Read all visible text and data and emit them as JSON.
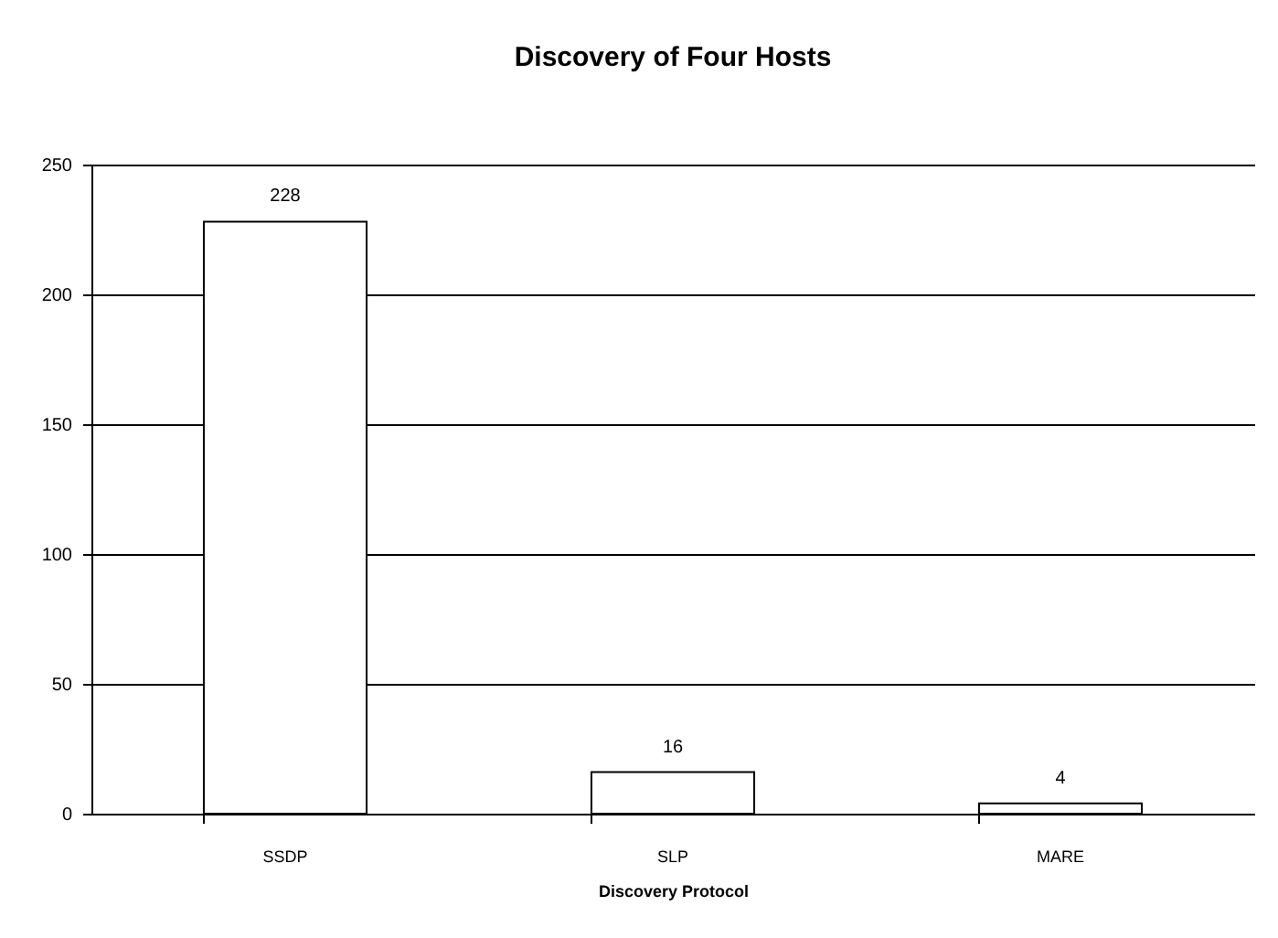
{
  "chart_data": {
    "type": "bar",
    "title": "Discovery of Four Hosts",
    "xlabel": "Discovery     Protocol",
    "categories": [
      "SSDP",
      "SLP",
      "MARE"
    ],
    "values": [
      228,
      16,
      4
    ],
    "color": "#ffffff",
    "ylim": [
      0,
      250
    ],
    "yticks": [
      0,
      50,
      100,
      150,
      200,
      250
    ],
    "grid": "y",
    "data_labels": true
  }
}
